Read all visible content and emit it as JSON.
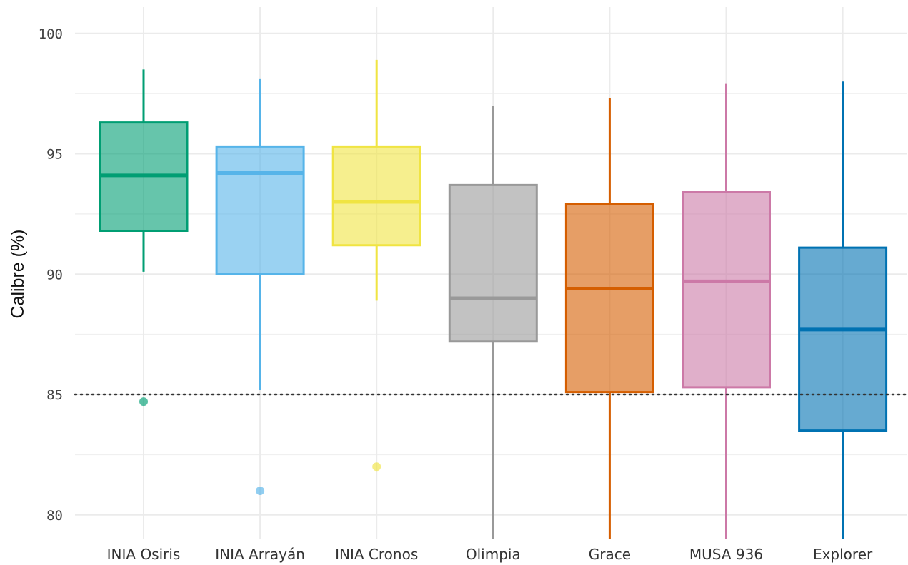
{
  "chart_data": {
    "type": "boxplot",
    "ylabel": "Calibre (%)",
    "xlabel": "",
    "ylim": [
      79,
      101
    ],
    "y_ticks": [
      80,
      85,
      90,
      95,
      100
    ],
    "reference_line": {
      "y": 85,
      "style": "dotted",
      "color": "#333333"
    },
    "grid": true,
    "legend": "none",
    "categories": [
      "INIA Osiris",
      "INIA Arrayán",
      "INIA Cronos",
      "Olimpia",
      "Grace",
      "MUSA 936",
      "Explorer"
    ],
    "series": [
      {
        "category": "INIA Osiris",
        "color": "#009E73",
        "whisker_low": 90.1,
        "q1": 91.8,
        "median": 94.1,
        "q3": 96.3,
        "whisker_high": 98.5,
        "outliers": [
          84.7
        ]
      },
      {
        "category": "INIA Arrayán",
        "color": "#56B4E9",
        "whisker_low": 85.2,
        "q1": 90.0,
        "median": 94.2,
        "q3": 95.3,
        "whisker_high": 98.1,
        "outliers": [
          81.0
        ]
      },
      {
        "category": "INIA Cronos",
        "color": "#F0E442",
        "whisker_low": 88.9,
        "q1": 91.2,
        "median": 93.0,
        "q3": 95.3,
        "whisker_high": 98.9,
        "outliers": [
          82.0
        ]
      },
      {
        "category": "Olimpia",
        "color": "#999999",
        "whisker_low": 79.0,
        "q1": 87.2,
        "median": 89.0,
        "q3": 93.7,
        "whisker_high": 97.0,
        "outliers": []
      },
      {
        "category": "Grace",
        "color": "#D55E00",
        "whisker_low": 79.0,
        "q1": 85.1,
        "median": 89.4,
        "q3": 92.9,
        "whisker_high": 97.3,
        "outliers": []
      },
      {
        "category": "MUSA 936",
        "color": "#CC79A7",
        "whisker_low": 79.0,
        "q1": 85.3,
        "median": 89.7,
        "q3": 93.4,
        "whisker_high": 97.9,
        "outliers": []
      },
      {
        "category": "Explorer",
        "color": "#0072B2",
        "whisker_low": 79.0,
        "q1": 83.5,
        "median": 87.7,
        "q3": 91.1,
        "whisker_high": 98.0,
        "outliers": []
      }
    ]
  }
}
